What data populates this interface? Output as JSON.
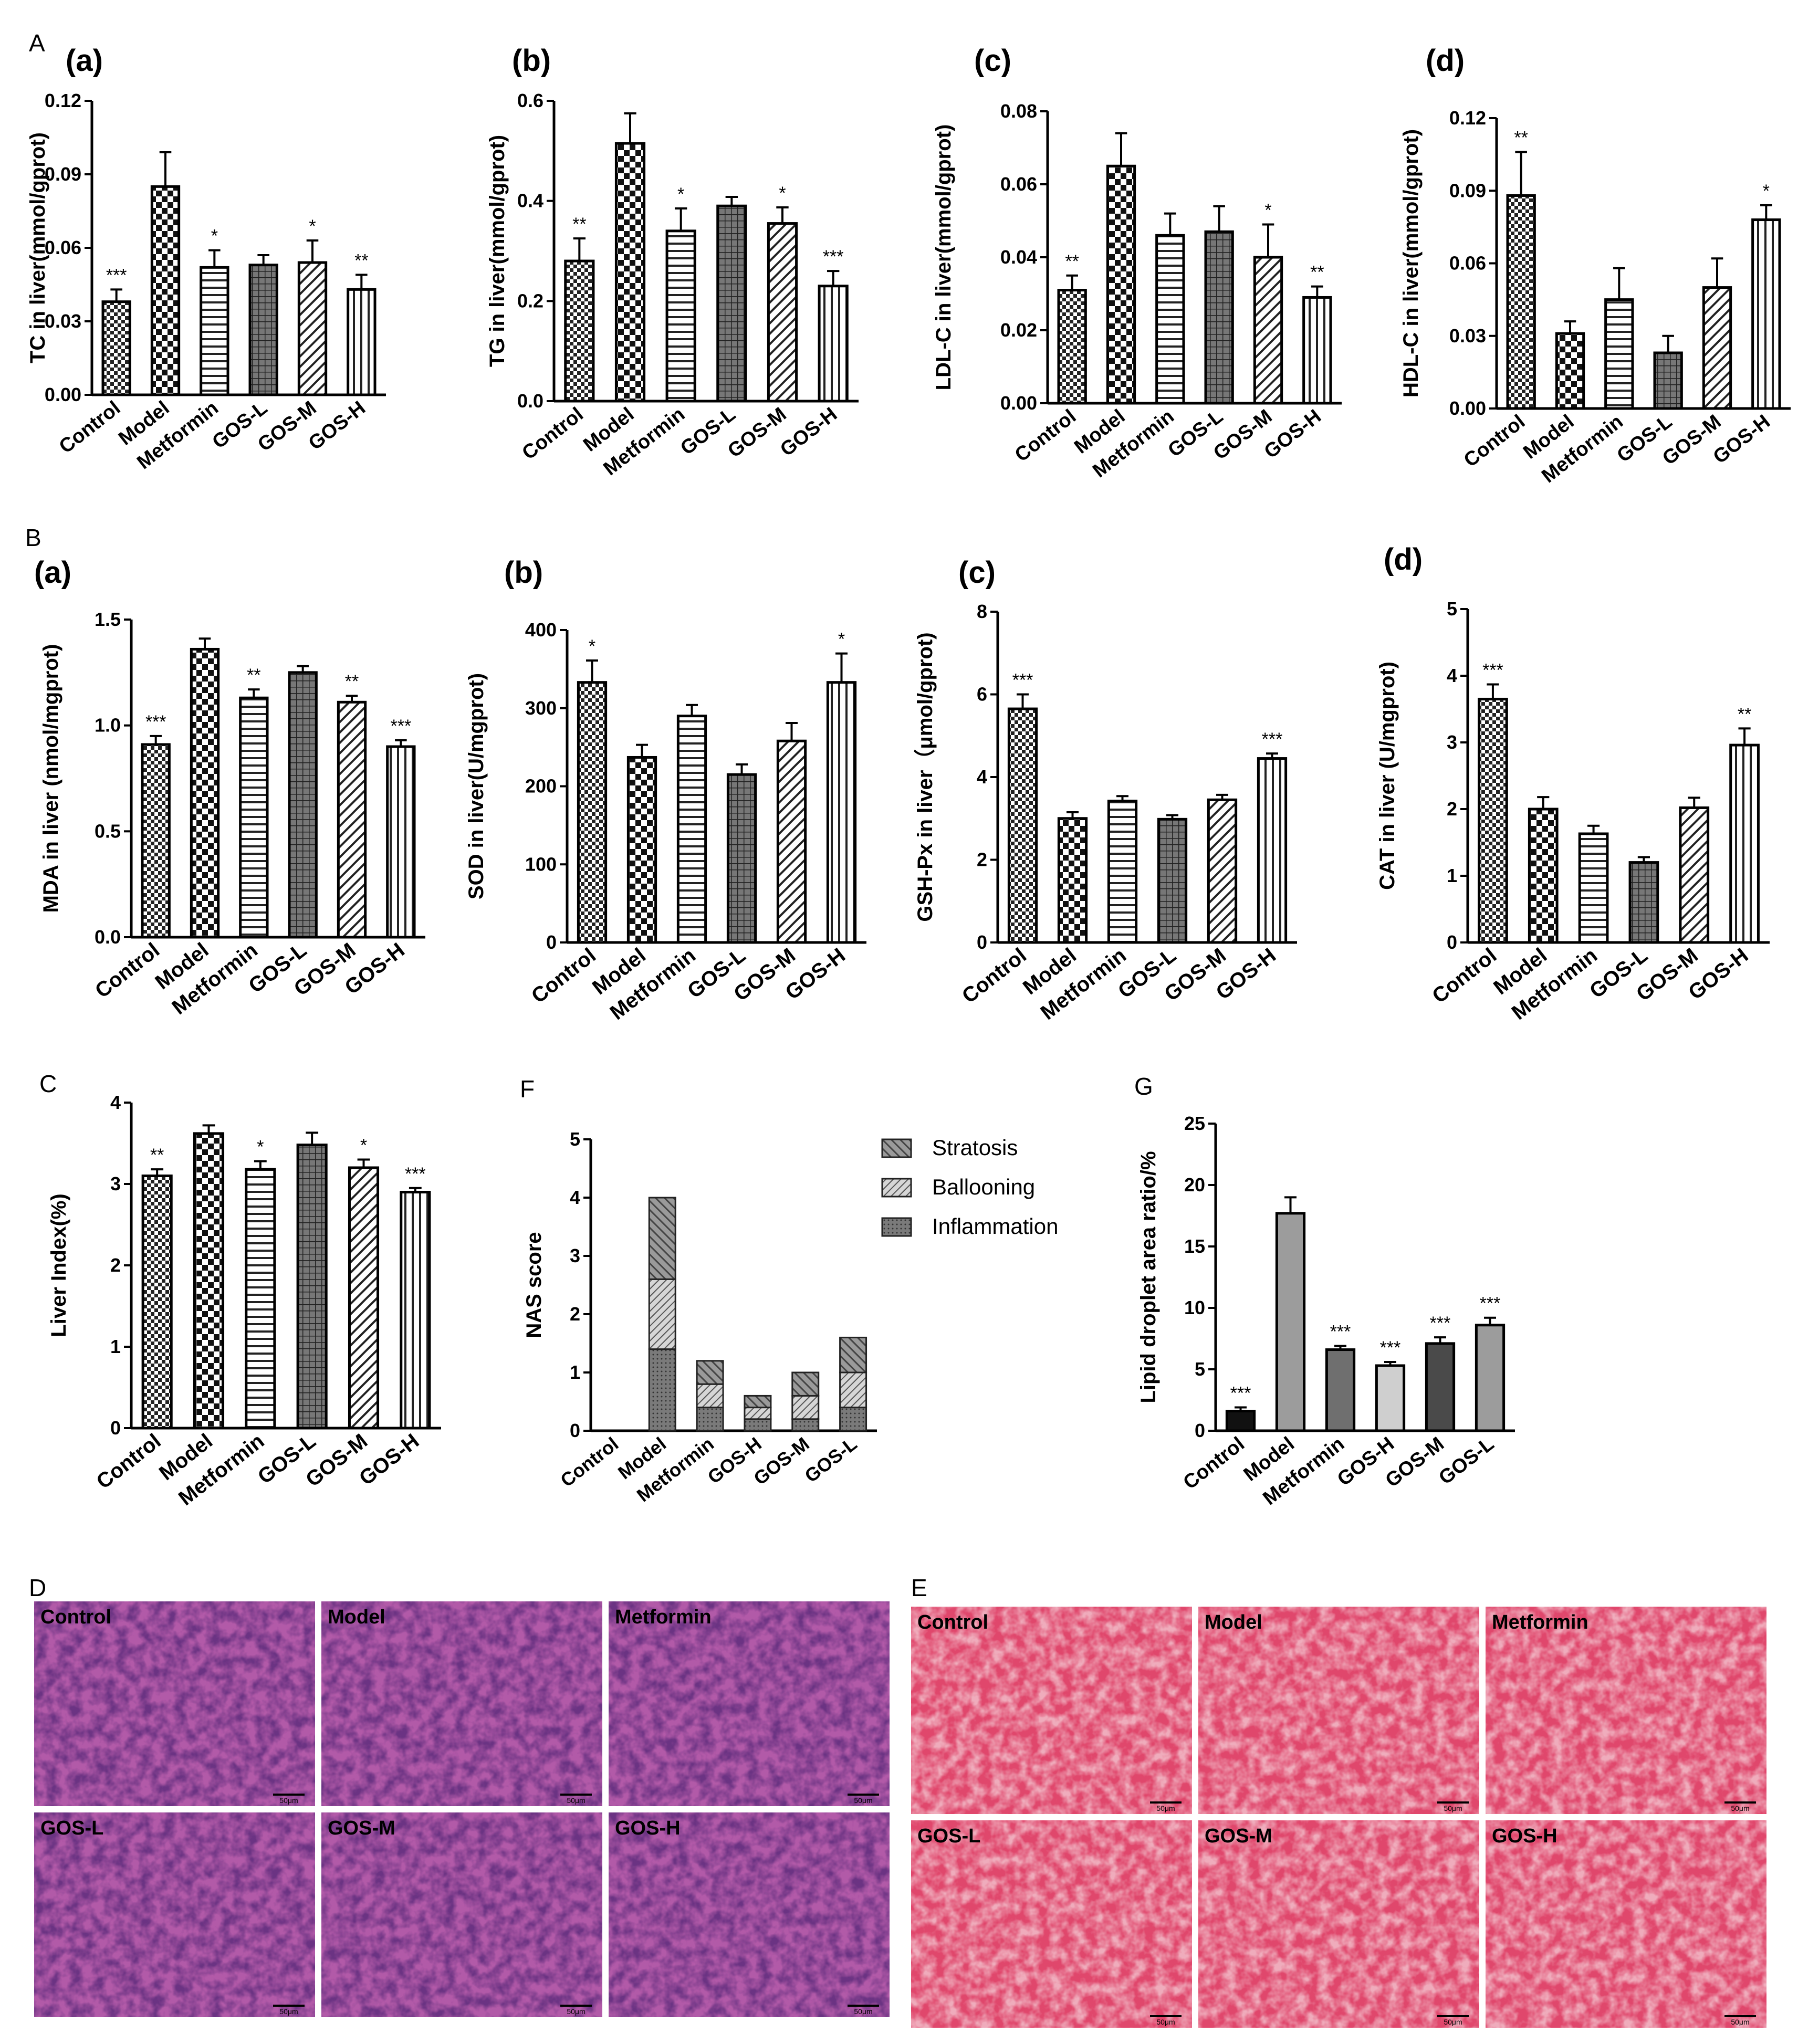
{
  "figure": {
    "panel_letters": {
      "A": "A",
      "B": "B",
      "C": "C",
      "D": "D",
      "E": "E",
      "F": "F",
      "G": "G"
    },
    "histology": {
      "D": {
        "letter": "D",
        "tiles": [
          "Control",
          "Model",
          "Metformin",
          "GOS-L",
          "GOS-M",
          "GOS-H"
        ],
        "scale_bar": "50μm",
        "stain_color": "#b25aa8"
      },
      "E": {
        "letter": "E",
        "tiles": [
          "Control",
          "Model",
          "Metformin",
          "GOS-L",
          "GOS-M",
          "GOS-H"
        ],
        "scale_bar": "50μm",
        "stain_color": "#e0476c"
      }
    }
  },
  "chart_data": [
    {
      "id": "A-a",
      "type": "bar",
      "title": "(a)",
      "ylabel": "TC in liver(mmol/gprot)",
      "ylim": [
        0,
        0.12
      ],
      "yticks": [
        "0.00",
        "0.03",
        "0.06",
        "0.09",
        "0.12"
      ],
      "categories": [
        "Control",
        "Model",
        "Metformin",
        "GOS-L",
        "GOS-M",
        "GOS-H"
      ],
      "values": [
        0.038,
        0.085,
        0.052,
        0.053,
        0.054,
        0.043
      ],
      "errors": [
        0.005,
        0.014,
        0.007,
        0.004,
        0.009,
        0.006
      ],
      "significance": [
        "***",
        "",
        "*",
        "",
        "*",
        "**"
      ]
    },
    {
      "id": "A-b",
      "type": "bar",
      "title": "(b)",
      "ylabel": "TG in liver(mmol/gprot)",
      "ylim": [
        0,
        0.6
      ],
      "yticks": [
        "0.0",
        "0.2",
        "0.4",
        "0.6"
      ],
      "categories": [
        "Control",
        "Model",
        "Metformin",
        "GOS-L",
        "GOS-M",
        "GOS-H"
      ],
      "values": [
        0.28,
        0.515,
        0.34,
        0.39,
        0.355,
        0.23
      ],
      "errors": [
        0.045,
        0.06,
        0.045,
        0.018,
        0.032,
        0.03
      ],
      "significance": [
        "**",
        "",
        "*",
        "",
        "*",
        "***"
      ]
    },
    {
      "id": "A-c",
      "type": "bar",
      "title": "(c)",
      "ylabel": "LDL-C in liver(mmol/gprot)",
      "ylim": [
        0,
        0.08
      ],
      "yticks": [
        "0.00",
        "0.02",
        "0.04",
        "0.06",
        "0.08"
      ],
      "categories": [
        "Control",
        "Model",
        "Metformin",
        "GOS-L",
        "GOS-M",
        "GOS-H"
      ],
      "values": [
        0.031,
        0.065,
        0.046,
        0.047,
        0.04,
        0.029
      ],
      "errors": [
        0.004,
        0.009,
        0.006,
        0.007,
        0.009,
        0.003
      ],
      "significance": [
        "**",
        "",
        "",
        "",
        "*",
        "**"
      ]
    },
    {
      "id": "A-d",
      "type": "bar",
      "title": "(d)",
      "ylabel": "HDL-C in liver(mmol/gprot)",
      "ylim": [
        0,
        0.12
      ],
      "yticks": [
        "0.00",
        "0.03",
        "0.06",
        "0.09",
        "0.12"
      ],
      "categories": [
        "Control",
        "Model",
        "Metformin",
        "GOS-L",
        "GOS-M",
        "GOS-H"
      ],
      "values": [
        0.088,
        0.031,
        0.045,
        0.023,
        0.05,
        0.078
      ],
      "errors": [
        0.018,
        0.005,
        0.013,
        0.007,
        0.012,
        0.006
      ],
      "significance": [
        "**",
        "",
        "",
        "",
        "",
        "*"
      ]
    },
    {
      "id": "B-a",
      "type": "bar",
      "title": "(a)",
      "ylabel": "MDA in liver (nmol/mgprot)",
      "ylim": [
        0,
        1.5
      ],
      "yticks": [
        "0.0",
        "0.5",
        "1.0",
        "1.5"
      ],
      "categories": [
        "Control",
        "Model",
        "Metformin",
        "GOS-L",
        "GOS-M",
        "GOS-H"
      ],
      "values": [
        0.91,
        1.36,
        1.13,
        1.25,
        1.11,
        0.9
      ],
      "errors": [
        0.04,
        0.05,
        0.04,
        0.03,
        0.03,
        0.03
      ],
      "significance": [
        "***",
        "",
        "**",
        "",
        "**",
        "***"
      ]
    },
    {
      "id": "B-b",
      "type": "bar",
      "title": "(b)",
      "ylabel": "SOD in liver(U/mgprot)",
      "ylim": [
        0,
        400
      ],
      "yticks": [
        "0",
        "100",
        "200",
        "300",
        "400"
      ],
      "categories": [
        "Control",
        "Model",
        "Metformin",
        "GOS-L",
        "GOS-M",
        "GOS-H"
      ],
      "values": [
        333,
        237,
        290,
        215,
        258,
        333
      ],
      "errors": [
        28,
        16,
        14,
        13,
        23,
        37
      ],
      "significance": [
        "*",
        "",
        "",
        "",
        "",
        "*"
      ]
    },
    {
      "id": "B-c",
      "type": "bar",
      "title": "(c)",
      "ylabel": "GSH-Px in liver（μmol/gprot)",
      "ylim": [
        0,
        8
      ],
      "yticks": [
        "0",
        "2",
        "4",
        "6",
        "8"
      ],
      "categories": [
        "Control",
        "Model",
        "Metformin",
        "GOS-L",
        "GOS-M",
        "GOS-H"
      ],
      "values": [
        5.65,
        3.0,
        3.42,
        2.98,
        3.45,
        4.45
      ],
      "errors": [
        0.35,
        0.15,
        0.12,
        0.1,
        0.12,
        0.12
      ],
      "significance": [
        "***",
        "",
        "",
        "",
        "",
        "***"
      ]
    },
    {
      "id": "B-d",
      "type": "bar",
      "title": "(d)",
      "ylabel": "CAT in liver (U/mgprot)",
      "ylim": [
        0,
        5
      ],
      "yticks": [
        "0",
        "1",
        "2",
        "3",
        "4",
        "5"
      ],
      "categories": [
        "Control",
        "Model",
        "Metformin",
        "GOS-L",
        "GOS-M",
        "GOS-H"
      ],
      "values": [
        3.65,
        2.0,
        1.63,
        1.2,
        2.02,
        2.96
      ],
      "errors": [
        0.22,
        0.18,
        0.12,
        0.08,
        0.15,
        0.25
      ],
      "significance": [
        "***",
        "",
        "",
        "",
        "",
        "**"
      ]
    },
    {
      "id": "C",
      "type": "bar",
      "title": "",
      "ylabel": "Liver Index(%)",
      "ylim": [
        0,
        4
      ],
      "yticks": [
        "0",
        "1",
        "2",
        "3",
        "4"
      ],
      "categories": [
        "Control",
        "Model",
        "Metformin",
        "GOS-L",
        "GOS-M",
        "GOS-H"
      ],
      "values": [
        3.1,
        3.62,
        3.18,
        3.48,
        3.2,
        2.9
      ],
      "errors": [
        0.08,
        0.1,
        0.1,
        0.15,
        0.1,
        0.05
      ],
      "significance": [
        "**",
        "",
        "*",
        "",
        "*",
        "***"
      ]
    },
    {
      "id": "F",
      "type": "bar",
      "stacked": true,
      "title": "",
      "ylabel": "NAS score",
      "ylim": [
        0,
        5
      ],
      "yticks": [
        "0",
        "1",
        "2",
        "3",
        "4",
        "5"
      ],
      "categories": [
        "Control",
        "Model",
        "Metformin",
        "GOS-H",
        "GOS-M",
        "GOS-L"
      ],
      "series": [
        {
          "name": "Inflammation",
          "values": [
            0,
            1.4,
            0.4,
            0.2,
            0.2,
            0.4
          ]
        },
        {
          "name": "Ballooning",
          "values": [
            0,
            1.2,
            0.4,
            0.2,
            0.4,
            0.6
          ]
        },
        {
          "name": "Stratosis",
          "values": [
            0,
            1.4,
            0.4,
            0.2,
            0.4,
            0.6
          ]
        }
      ],
      "legend": [
        "Stratosis",
        "Ballooning",
        "Inflammation"
      ]
    },
    {
      "id": "G",
      "type": "bar",
      "title": "",
      "ylabel": "Lipid droplet area ratio/%",
      "ylim": [
        0,
        25
      ],
      "yticks": [
        "0",
        "5",
        "10",
        "15",
        "20",
        "25"
      ],
      "categories": [
        "Control",
        "Model",
        "Metformin",
        "GOS-H",
        "GOS-M",
        "GOS-L"
      ],
      "values": [
        1.6,
        17.7,
        6.6,
        5.3,
        7.1,
        8.6
      ],
      "errors": [
        0.3,
        1.3,
        0.3,
        0.3,
        0.5,
        0.6
      ],
      "colors": [
        "#111111",
        "#9c9c9c",
        "#6f6f6f",
        "#cfcfcf",
        "#4a4a4a",
        "#9c9c9c"
      ],
      "significance": [
        "***",
        "",
        "***",
        "***",
        "***",
        "***"
      ]
    }
  ]
}
